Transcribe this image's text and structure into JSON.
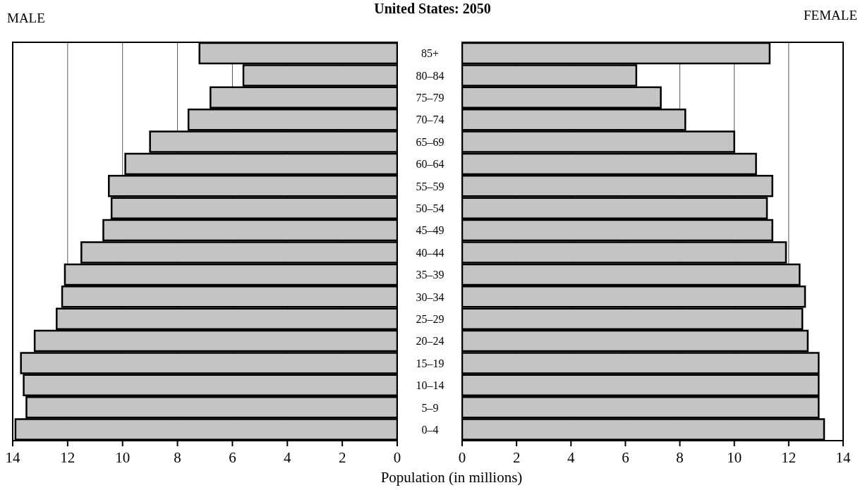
{
  "chart_data": [
    {
      "type": "bar",
      "orientation": "horizontal",
      "title": "United States: 2050",
      "categories": [
        null,
        null,
        null,
        null,
        null,
        null,
        null,
        null,
        null,
        null,
        null,
        null,
        null,
        null,
        null,
        null,
        null,
        null
      ],
      "series": [
        {
          "name": "MALE",
          "color": "#c4c4c4",
          "values": [
            7.2,
            5.6,
            6.8,
            7.6,
            9.0,
            9.9,
            10.5,
            10.4,
            10.7,
            11.5,
            12.1,
            12.2,
            12.4,
            13.2,
            13.7,
            13.6,
            13.5,
            13.9
          ]
        }
      ],
      "xlim": [
        14,
        0
      ],
      "xticks": [
        14,
        12,
        10,
        8,
        6,
        4,
        2,
        0
      ],
      "grid": "x",
      "tick_labels": "x"
    },
    {
      "type": "bar",
      "orientation": "horizontal",
      "xlabel": "Population (in millions)",
      "categories": [
        "85+",
        "80–84",
        "75–79",
        "70–74",
        "65–69",
        "60–64",
        "55–59",
        "50–54",
        "45–49",
        "40–44",
        "35–39",
        "30–34",
        "25–29",
        "20–24",
        "15–19",
        "10–14",
        "5–9",
        "0–4"
      ],
      "series": [
        {
          "name": "FEMALE",
          "color": "#c4c4c4",
          "values": [
            11.3,
            6.4,
            7.3,
            8.2,
            10.0,
            10.8,
            11.4,
            11.2,
            11.4,
            11.9,
            12.4,
            12.6,
            12.5,
            12.7,
            13.1,
            13.1,
            13.1,
            13.3
          ]
        }
      ],
      "xlim": [
        0,
        14
      ],
      "xticks": [
        0,
        2,
        4,
        6,
        8,
        10,
        12,
        14
      ],
      "grid": "x"
    }
  ]
}
